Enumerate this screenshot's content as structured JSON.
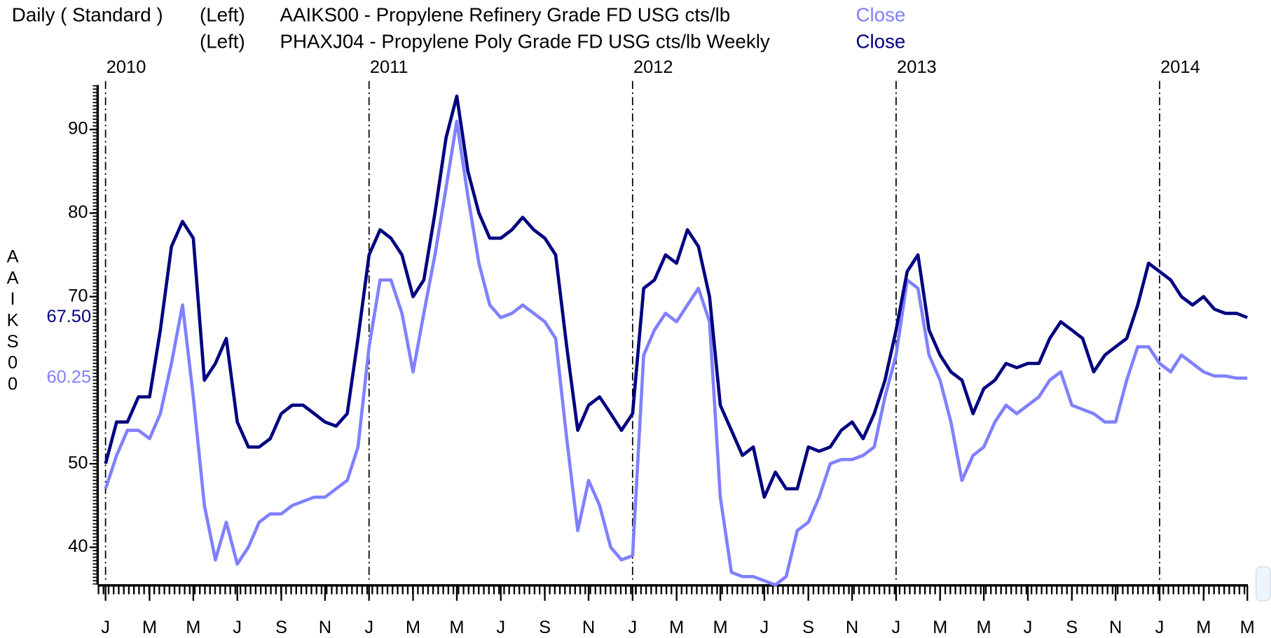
{
  "chart_data": {
    "type": "line",
    "header": "Daily ( Standard )",
    "y_label": "AAIKS00",
    "x": [
      2010,
      2010.042,
      2010.083,
      2010.125,
      2010.167,
      2010.208,
      2010.25,
      2010.292,
      2010.333,
      2010.375,
      2010.417,
      2010.458,
      2010.5,
      2010.542,
      2010.583,
      2010.625,
      2010.667,
      2010.708,
      2010.75,
      2010.792,
      2010.833,
      2010.875,
      2010.917,
      2010.958,
      2011,
      2011.042,
      2011.083,
      2011.125,
      2011.167,
      2011.208,
      2011.25,
      2011.292,
      2011.333,
      2011.375,
      2011.417,
      2011.458,
      2011.5,
      2011.542,
      2011.583,
      2011.625,
      2011.667,
      2011.708,
      2011.75,
      2011.792,
      2011.833,
      2011.875,
      2011.917,
      2011.958,
      2012,
      2012.042,
      2012.083,
      2012.125,
      2012.167,
      2012.208,
      2012.25,
      2012.292,
      2012.333,
      2012.375,
      2012.417,
      2012.458,
      2012.5,
      2012.542,
      2012.583,
      2012.625,
      2012.667,
      2012.708,
      2012.75,
      2012.792,
      2012.833,
      2012.875,
      2012.917,
      2012.958,
      2013,
      2013.042,
      2013.083,
      2013.125,
      2013.167,
      2013.208,
      2013.25,
      2013.292,
      2013.333,
      2013.375,
      2013.417,
      2013.458,
      2013.5,
      2013.542,
      2013.583,
      2013.625,
      2013.667,
      2013.708,
      2013.75,
      2013.792,
      2013.833,
      2013.875,
      2013.917,
      2013.958,
      2014,
      2014.042,
      2014.083,
      2014.125,
      2014.167,
      2014.208,
      2014.25,
      2014.292,
      2014.333
    ],
    "series": [
      {
        "name": "AAIKS00 - Propylene Refinery Grade FD USG cts/lb",
        "axis_side": "(Left)",
        "field": "Close",
        "color": "#8080ff",
        "last_label": "60.25",
        "values": [
          47,
          51,
          54,
          54,
          53,
          56,
          62,
          69,
          58,
          45,
          38.5,
          43,
          38,
          40,
          43,
          44,
          44,
          45,
          45.5,
          46,
          46,
          47,
          48,
          52,
          64,
          72,
          72,
          68,
          61,
          68,
          75,
          83,
          91,
          82,
          74,
          69,
          67.5,
          68,
          69,
          68,
          67,
          65,
          53,
          42,
          48,
          45,
          40,
          38.5,
          39,
          63,
          66,
          68,
          67,
          69,
          71,
          67,
          46,
          37,
          36.5,
          36.5,
          36,
          35.5,
          36.5,
          42,
          43,
          46,
          50,
          50.5,
          50.5,
          51,
          52,
          58,
          63,
          72,
          71,
          63,
          60,
          55,
          48,
          51,
          52,
          55,
          57,
          56,
          57,
          58,
          60,
          61,
          57,
          56.5,
          56,
          55,
          55,
          60,
          64,
          64,
          62,
          61,
          63,
          62,
          61,
          60.5,
          60.5,
          60.25,
          60.25
        ]
      },
      {
        "name": "PHAXJ04 - Propylene Poly Grade FD USG cts/lb Weekly",
        "axis_side": "(Left)",
        "field": "Close",
        "color": "#000080",
        "last_label": "67.50",
        "values": [
          50,
          55,
          55,
          58,
          58,
          66,
          76,
          79,
          77,
          60,
          62,
          65,
          55,
          52,
          52,
          53,
          56,
          57,
          57,
          56,
          55,
          54.5,
          56,
          65,
          75,
          78,
          77,
          75,
          70,
          72,
          80,
          89,
          94,
          85,
          80,
          77,
          77,
          78,
          79.5,
          78,
          77,
          75,
          64,
          54,
          57,
          58,
          56,
          54,
          56,
          71,
          72,
          75,
          74,
          78,
          76,
          70,
          57,
          54,
          51,
          52,
          46,
          49,
          47,
          47,
          52,
          51.5,
          52,
          54,
          55,
          53,
          56,
          60,
          66,
          73,
          75,
          66,
          63,
          61,
          60,
          56,
          59,
          60,
          62,
          61.5,
          62,
          62,
          65,
          67,
          66,
          65,
          61,
          63,
          64,
          65,
          69,
          74,
          73,
          72,
          70,
          69,
          70,
          68.5,
          68,
          68,
          67.5
        ]
      }
    ],
    "xlim": [
      2009.97,
      2014.335
    ],
    "ylim": [
      35.54,
      95.33
    ],
    "yticks": [
      40,
      50,
      70,
      80,
      90
    ],
    "xticks": [
      {
        "value": 2010,
        "label": "J"
      },
      {
        "value": 2010.167,
        "label": "M"
      },
      {
        "value": 2010.333,
        "label": "M"
      },
      {
        "value": 2010.5,
        "label": "J"
      },
      {
        "value": 2010.667,
        "label": "S"
      },
      {
        "value": 2010.833,
        "label": "N"
      },
      {
        "value": 2011,
        "label": "J"
      },
      {
        "value": 2011.167,
        "label": "M"
      },
      {
        "value": 2011.333,
        "label": "M"
      },
      {
        "value": 2011.5,
        "label": "J"
      },
      {
        "value": 2011.667,
        "label": "S"
      },
      {
        "value": 2011.833,
        "label": "N"
      },
      {
        "value": 2012,
        "label": "J"
      },
      {
        "value": 2012.167,
        "label": "M"
      },
      {
        "value": 2012.333,
        "label": "M"
      },
      {
        "value": 2012.5,
        "label": "J"
      },
      {
        "value": 2012.667,
        "label": "S"
      },
      {
        "value": 2012.833,
        "label": "N"
      },
      {
        "value": 2013,
        "label": "J"
      },
      {
        "value": 2013.167,
        "label": "M"
      },
      {
        "value": 2013.333,
        "label": "M"
      },
      {
        "value": 2013.5,
        "label": "J"
      },
      {
        "value": 2013.667,
        "label": "S"
      },
      {
        "value": 2013.833,
        "label": "N"
      },
      {
        "value": 2014,
        "label": "J"
      },
      {
        "value": 2014.167,
        "label": "M"
      },
      {
        "value": 2014.333,
        "label": "M"
      }
    ],
    "year_markers": [
      2010,
      2011,
      2012,
      2013,
      2014
    ]
  }
}
